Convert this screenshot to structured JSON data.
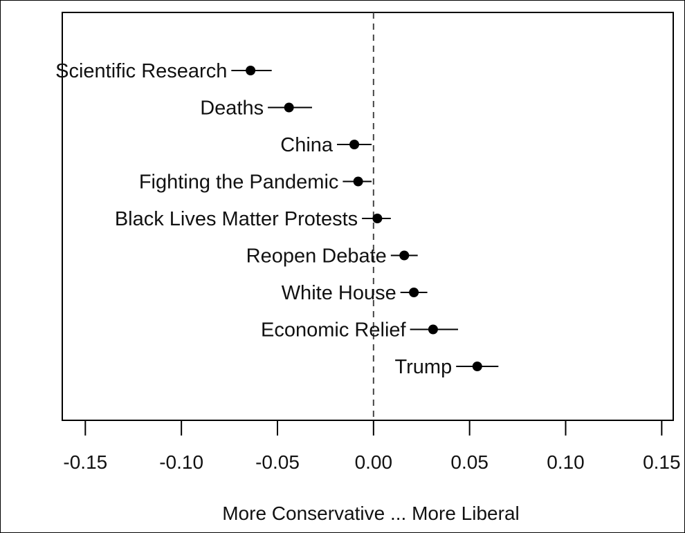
{
  "chart_data": {
    "type": "scatter",
    "title": "",
    "xlabel": "More Conservative ... More Liberal",
    "ylabel": "",
    "xlim": [
      -0.162,
      0.156
    ],
    "xticks": [
      "-0.15",
      "-0.10",
      "-0.05",
      "0.00",
      "0.05",
      "0.10",
      "0.15"
    ],
    "xtick_values": [
      -0.15,
      -0.1,
      -0.05,
      0.0,
      0.05,
      0.1,
      0.15
    ],
    "reference_line": 0.0,
    "grid": false,
    "legend": "none",
    "marker_color": "#000000",
    "points": [
      {
        "label": "Scientific Research",
        "estimate": -0.064,
        "lower": -0.074,
        "upper": -0.053
      },
      {
        "label": "Deaths",
        "estimate": -0.044,
        "lower": -0.055,
        "upper": -0.032
      },
      {
        "label": "China",
        "estimate": -0.01,
        "lower": -0.019,
        "upper": -0.001
      },
      {
        "label": "Fighting the Pandemic",
        "estimate": -0.008,
        "lower": -0.016,
        "upper": -0.001
      },
      {
        "label": "Black Lives Matter Protests",
        "estimate": 0.002,
        "lower": -0.006,
        "upper": 0.009
      },
      {
        "label": "Reopen Debate",
        "estimate": 0.016,
        "lower": 0.009,
        "upper": 0.023
      },
      {
        "label": "White House",
        "estimate": 0.021,
        "lower": 0.014,
        "upper": 0.028
      },
      {
        "label": "Economic Relief",
        "estimate": 0.031,
        "lower": 0.019,
        "upper": 0.044
      },
      {
        "label": "Trump",
        "estimate": 0.054,
        "lower": 0.043,
        "upper": 0.065
      }
    ]
  }
}
